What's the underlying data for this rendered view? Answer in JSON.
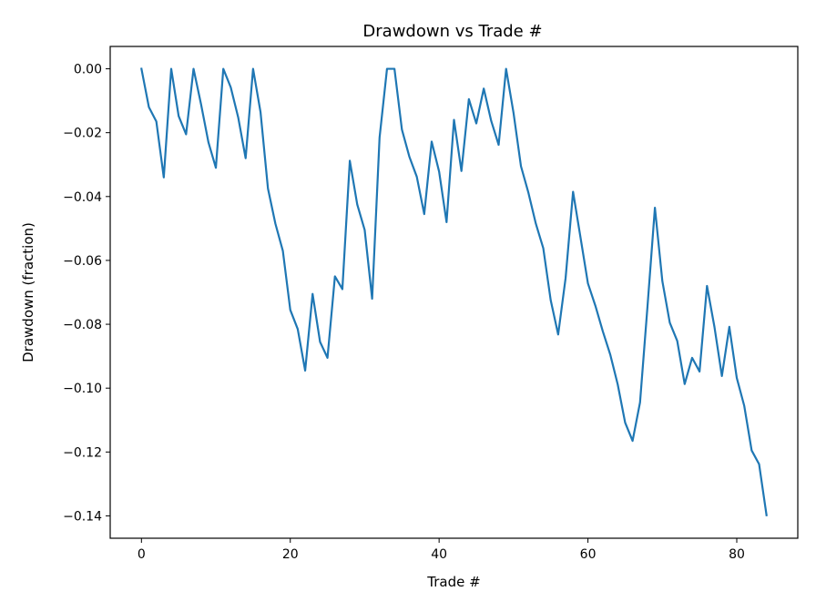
{
  "chart_data": {
    "type": "line",
    "title": "Drawdown vs Trade #",
    "xlabel": "Trade #",
    "ylabel": "Drawdown (fraction)",
    "xlim": [
      -4.2,
      88.2
    ],
    "ylim": [
      -0.147,
      0.007
    ],
    "xticks": [
      0,
      20,
      40,
      60,
      80
    ],
    "yticks": [
      0.0,
      -0.02,
      -0.04,
      -0.06,
      -0.08,
      -0.1,
      -0.12,
      -0.14
    ],
    "ytick_labels": [
      "0.00",
      "−0.02",
      "−0.04",
      "−0.06",
      "−0.08",
      "−0.10",
      "−0.12",
      "−0.14"
    ],
    "grid": false,
    "color": "#1f77b4",
    "series": [
      {
        "x": [
          0,
          1,
          2,
          3,
          4,
          5,
          6,
          7,
          8,
          9,
          10,
          11,
          12,
          13,
          14,
          15,
          16,
          17,
          18,
          19,
          20,
          21,
          22,
          23,
          24,
          25,
          26,
          27,
          28,
          29,
          30,
          31,
          32,
          33,
          34,
          35,
          36,
          37,
          38,
          39,
          40,
          41,
          42,
          43,
          44,
          45,
          46,
          47,
          48,
          49,
          50,
          51,
          52,
          53,
          54,
          55,
          56,
          57,
          58,
          59,
          60,
          61,
          62,
          63,
          64,
          65,
          66,
          67,
          68,
          69,
          70,
          71,
          72,
          73,
          74,
          75,
          76,
          77,
          78,
          79,
          80,
          81,
          82,
          83,
          84
        ],
        "values": [
          0.0,
          -0.012,
          -0.0165,
          -0.034,
          0.0,
          -0.0148,
          -0.0205,
          0.0,
          -0.011,
          -0.023,
          -0.031,
          0.0,
          -0.0058,
          -0.0152,
          -0.028,
          0.0,
          -0.0135,
          -0.0375,
          -0.0485,
          -0.057,
          -0.0755,
          -0.0815,
          -0.0945,
          -0.0705,
          -0.0855,
          -0.0905,
          -0.065,
          -0.069,
          -0.0288,
          -0.0425,
          -0.0505,
          -0.072,
          -0.0215,
          0.0,
          0.0,
          -0.019,
          -0.0275,
          -0.0338,
          -0.0455,
          -0.0228,
          -0.0322,
          -0.048,
          -0.016,
          -0.032,
          -0.0095,
          -0.0171,
          -0.0062,
          -0.0163,
          -0.0238,
          0.0,
          -0.0138,
          -0.0305,
          -0.0388,
          -0.0485,
          -0.0562,
          -0.0725,
          -0.0832,
          -0.0655,
          -0.0385,
          -0.0528,
          -0.0672,
          -0.0742,
          -0.0822,
          -0.0895,
          -0.0988,
          -0.1108,
          -0.1165,
          -0.1045,
          -0.0745,
          -0.0435,
          -0.0665,
          -0.0795,
          -0.0852,
          -0.0987,
          -0.0905,
          -0.0948,
          -0.068,
          -0.0808,
          -0.0962,
          -0.0808,
          -0.0968,
          -0.1055,
          -0.1195,
          -0.1238,
          -0.1398
        ]
      }
    ]
  }
}
